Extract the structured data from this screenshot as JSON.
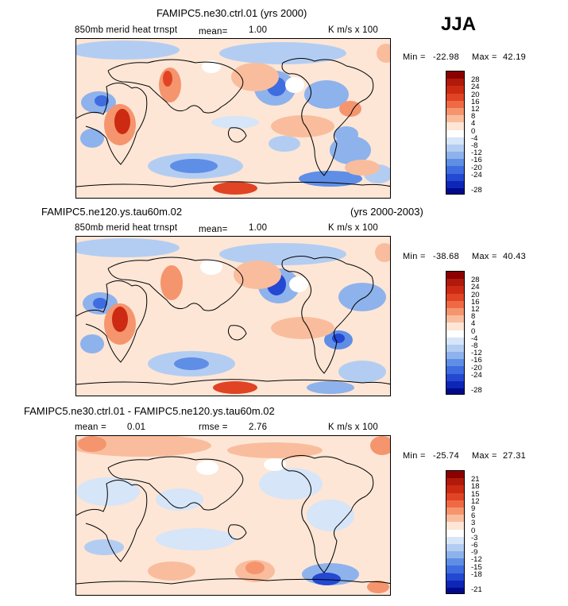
{
  "season": "JJA",
  "panels": [
    {
      "title": "FAMIPC5.ne30.ctrl.01 (yrs 2000)",
      "title_right": "",
      "variable": "850mb merid heat trnspt",
      "mean_label": "mean=",
      "mean_value": "1.00",
      "units": "K m/s x 100",
      "min_label": "Min =",
      "min_value": "-22.98",
      "max_label": "Max =",
      "max_value": "42.19",
      "contour_levels": [
        "28",
        "24",
        "20",
        "16",
        "12",
        "8",
        "4",
        "0",
        "-4",
        "-8",
        "-12",
        "-16",
        "-20",
        "-24",
        "-28"
      ]
    },
    {
      "title": "FAMIPC5.ne120.ys.tau60m.02",
      "title_right": "(yrs 2000-2003)",
      "variable": "850mb merid heat trnspt",
      "mean_label": "mean=",
      "mean_value": "1.00",
      "units": "K m/s x 100",
      "min_label": "Min =",
      "min_value": "-38.68",
      "max_label": "Max =",
      "max_value": "40.43",
      "contour_levels": [
        "28",
        "24",
        "20",
        "16",
        "12",
        "8",
        "4",
        "0",
        "-4",
        "-8",
        "-12",
        "-16",
        "-20",
        "-24",
        "-28"
      ]
    },
    {
      "title": "FAMIPC5.ne30.ctrl.01 - FAMIPC5.ne120.ys.tau60m.02",
      "mean_label": "mean =",
      "mean_value": "0.01",
      "rmse_label": "rmse =",
      "rmse_value": "2.76",
      "units": "K m/s x 100",
      "min_label": "Min =",
      "min_value": "-25.74",
      "max_label": "Max =",
      "max_value": "27.31",
      "contour_levels": [
        "21",
        "18",
        "15",
        "12",
        "9",
        "6",
        "3",
        "0",
        "-3",
        "-6",
        "-9",
        "-12",
        "-15",
        "-18",
        "-21"
      ]
    }
  ],
  "colors": {
    "scale": [
      "#8b0000",
      "#b01a0a",
      "#cc2a12",
      "#e04424",
      "#ef6a44",
      "#f5956e",
      "#f9bd9d",
      "#fde6d6",
      "#ffffff",
      "#d6e5f8",
      "#b3cdf2",
      "#8eb2ec",
      "#5f8ee6",
      "#3f6de0",
      "#2348d2",
      "#0e26b8",
      "#000a8c"
    ],
    "coast": "#000000"
  }
}
